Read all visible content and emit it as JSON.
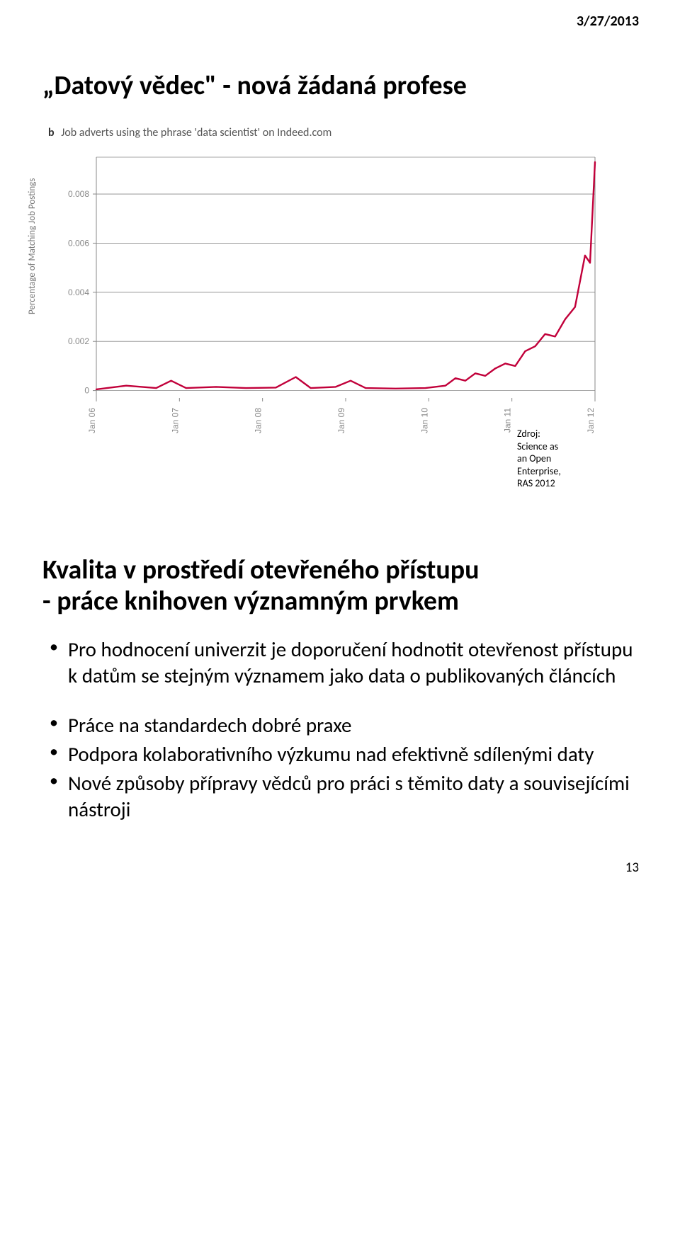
{
  "header_date": "3/27/2013",
  "slide1": {
    "title": "„Datový vědec\" - nová žádaná profese",
    "chart": {
      "type": "line",
      "caption_label": "b",
      "caption_text": "Job adverts using the phrase 'data scientist' on Indeed.com",
      "ylabel": "Percentage of Matching Job Postings",
      "x_labels": [
        "Jan 06",
        "Jan 07",
        "Jan 08",
        "Jan 09",
        "Jan 10",
        "Jan 11",
        "Jan 12"
      ],
      "y_ticks": [
        0,
        0.002,
        0.004,
        0.006,
        0.008
      ],
      "ylim": [
        -0.0003,
        0.0095
      ],
      "line_color": "#c1003a",
      "line_width": 2.4,
      "grid_color": "#888888",
      "axis_color": "#888888",
      "background_color": "#ffffff",
      "tick_font_size": 12,
      "tick_color": "#888888",
      "series": [
        {
          "x": 0.0,
          "y": 5e-05
        },
        {
          "x": 0.06,
          "y": 0.0002
        },
        {
          "x": 0.12,
          "y": 0.0001
        },
        {
          "x": 0.15,
          "y": 0.0004
        },
        {
          "x": 0.18,
          "y": 0.0001
        },
        {
          "x": 0.24,
          "y": 0.00015
        },
        {
          "x": 0.3,
          "y": 0.0001
        },
        {
          "x": 0.36,
          "y": 0.00012
        },
        {
          "x": 0.4,
          "y": 0.00055
        },
        {
          "x": 0.43,
          "y": 0.0001
        },
        {
          "x": 0.48,
          "y": 0.00015
        },
        {
          "x": 0.51,
          "y": 0.0004
        },
        {
          "x": 0.54,
          "y": 0.0001
        },
        {
          "x": 0.6,
          "y": 8e-05
        },
        {
          "x": 0.66,
          "y": 0.0001
        },
        {
          "x": 0.7,
          "y": 0.0002
        },
        {
          "x": 0.72,
          "y": 0.0005
        },
        {
          "x": 0.74,
          "y": 0.0004
        },
        {
          "x": 0.76,
          "y": 0.0007
        },
        {
          "x": 0.78,
          "y": 0.0006
        },
        {
          "x": 0.8,
          "y": 0.0009
        },
        {
          "x": 0.82,
          "y": 0.0011
        },
        {
          "x": 0.84,
          "y": 0.001
        },
        {
          "x": 0.86,
          "y": 0.0016
        },
        {
          "x": 0.88,
          "y": 0.0018
        },
        {
          "x": 0.9,
          "y": 0.0023
        },
        {
          "x": 0.92,
          "y": 0.0022
        },
        {
          "x": 0.94,
          "y": 0.0029
        },
        {
          "x": 0.96,
          "y": 0.0034
        },
        {
          "x": 0.98,
          "y": 0.0055
        },
        {
          "x": 0.99,
          "y": 0.0052
        },
        {
          "x": 1.0,
          "y": 0.0093
        }
      ]
    },
    "source": {
      "label": "Zdroj:",
      "line1": "Science as",
      "line2": "an Open",
      "line3": "Enterprise,",
      "line4": "RAS 2012"
    }
  },
  "slide2": {
    "title_l1": "Kvalita v prostředí otevřeného přístupu",
    "title_l2": "- práce knihoven významným prvkem",
    "bullet1": "Pro hodnocení univerzit je doporučení hodnotit otevřenost přístupu k datům se stejným významem jako data o publikovaných článcích",
    "bullet2": "Práce na standardech dobré praxe",
    "bullet3": "Podpora kolaborativního výzkumu nad efektivně sdílenými daty",
    "bullet4": "Nové způsoby přípravy vědců pro práci s těmito daty a souvisejícími nástroji"
  },
  "page_number": "13"
}
